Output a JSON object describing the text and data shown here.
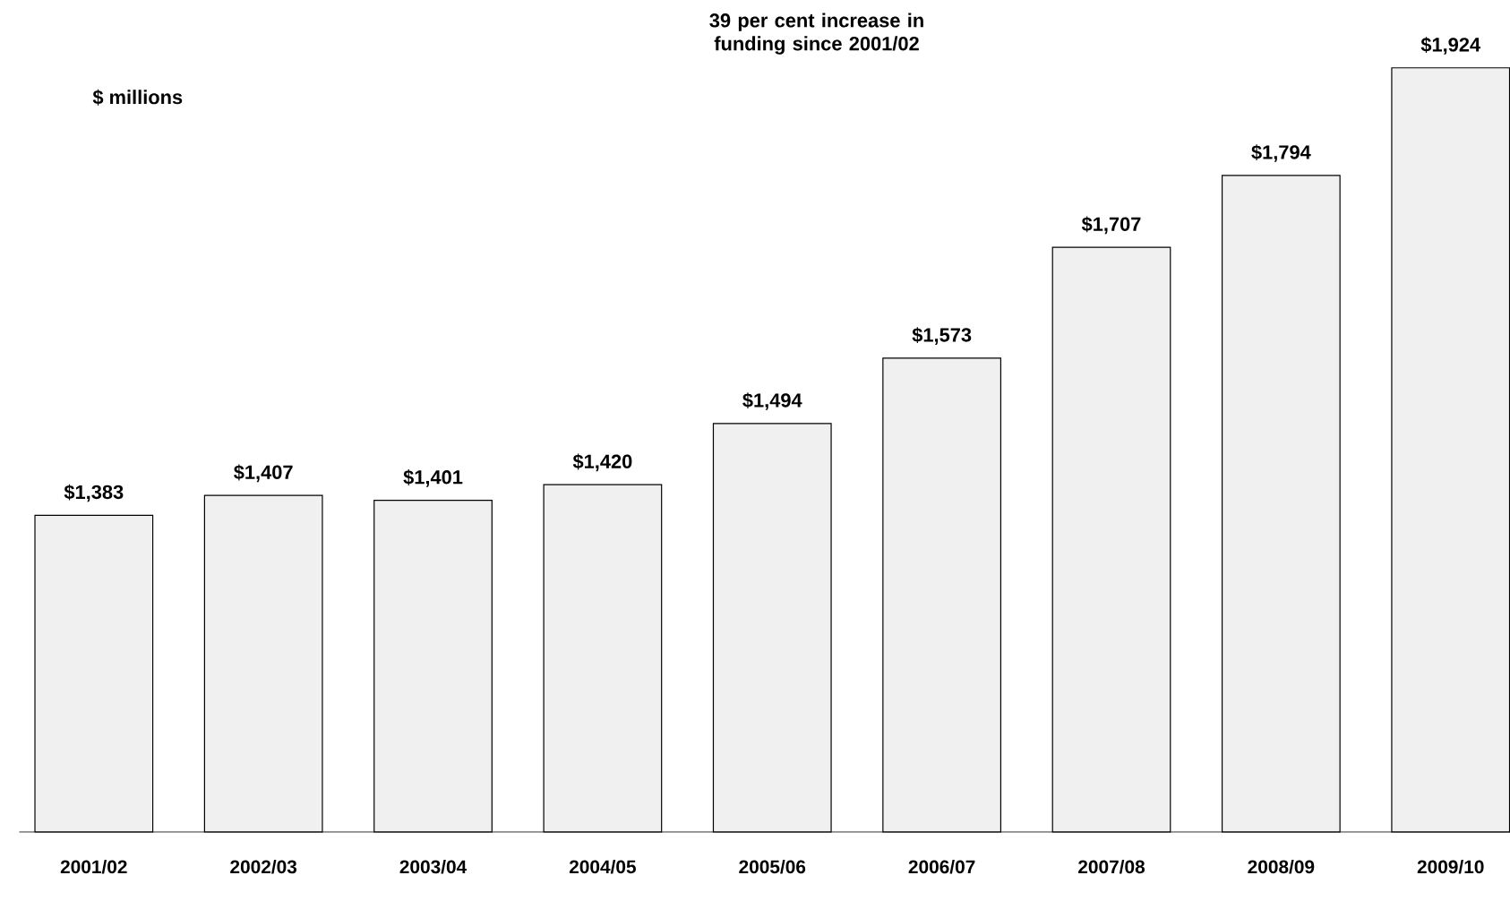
{
  "chart_data": {
    "type": "bar",
    "title": "39 per cent increase in funding since 2001/02",
    "ylabel": "$ millions",
    "categories": [
      "2001/02",
      "2002/03",
      "2003/04",
      "2004/05",
      "2005/06",
      "2006/07",
      "2007/08",
      "2008/09",
      "2009/10"
    ],
    "values": [
      1383,
      1407,
      1401,
      1420,
      1494,
      1573,
      1707,
      1794,
      1924
    ],
    "value_labels": [
      "$1,383",
      "$1,407",
      "$1,401",
      "$1,420",
      "$1,494",
      "$1,573",
      "$1,707",
      "$1,794",
      "$1,924"
    ],
    "color": "#f0f0f0",
    "ylim": [
      1000,
      1924
    ],
    "tick_labels": "x",
    "grid": false
  }
}
